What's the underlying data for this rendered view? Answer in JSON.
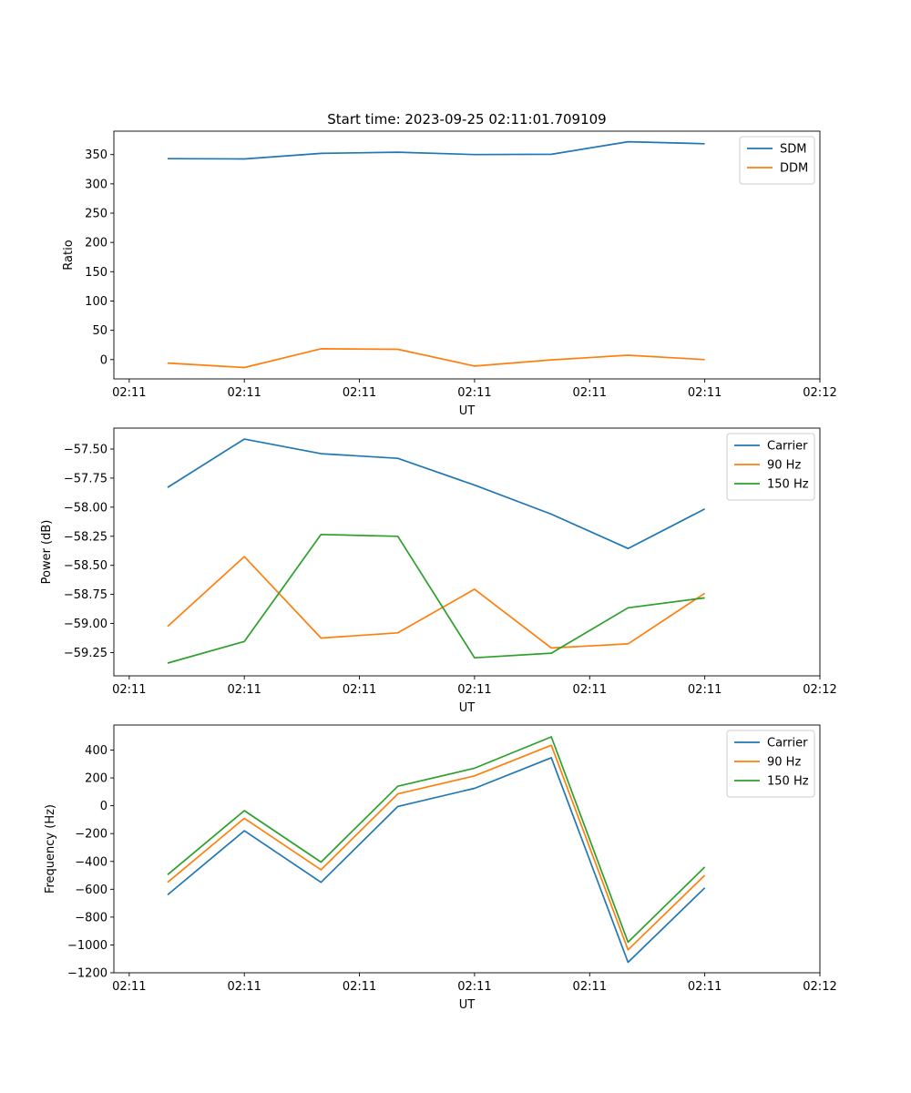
{
  "figure_title": "Start time: 2023-09-25 02:11:01.709109",
  "colors": {
    "blue": "#1f77b4",
    "orange": "#ff7f0e",
    "green": "#2ca02c"
  },
  "chart_data": [
    {
      "type": "line",
      "title": "Start time: 2023-09-25 02:11:01.709109",
      "xlabel": "UT",
      "ylabel": "Ratio",
      "x": [
        1,
        2,
        3,
        4,
        5,
        6,
        7,
        8
      ],
      "xlim": [
        0.3,
        9.5
      ],
      "xticks": [
        0.5,
        2,
        3.5,
        5,
        6.5,
        8,
        9.5
      ],
      "xticklabels": [
        "02:11",
        "02:11",
        "02:11",
        "02:11",
        "02:11",
        "02:11",
        "02:12"
      ],
      "ylim": [
        -33,
        390
      ],
      "yticks": [
        0,
        50,
        100,
        150,
        200,
        250,
        300,
        350
      ],
      "yticklabels": [
        "0",
        "50",
        "100",
        "150",
        "200",
        "250",
        "300",
        "350"
      ],
      "legend": "top-right",
      "series": [
        {
          "name": "SDM",
          "color": "#1f77b4",
          "values": [
            343,
            342.5,
            352,
            354,
            350,
            350.5,
            372,
            368.5
          ]
        },
        {
          "name": "DDM",
          "color": "#ff7f0e",
          "values": [
            -6,
            -13.5,
            18.5,
            17.5,
            -11,
            -0.5,
            7.5,
            0
          ]
        }
      ]
    },
    {
      "type": "line",
      "title": "",
      "xlabel": "UT",
      "ylabel": "Power (dB)",
      "x": [
        1,
        2,
        3,
        4,
        5,
        6,
        7,
        8
      ],
      "xlim": [
        0.3,
        9.5
      ],
      "xticks": [
        0.5,
        2,
        3.5,
        5,
        6.5,
        8,
        9.5
      ],
      "xticklabels": [
        "02:11",
        "02:11",
        "02:11",
        "02:11",
        "02:11",
        "02:11",
        "02:12"
      ],
      "ylim": [
        -59.45,
        -57.32
      ],
      "yticks": [
        -57.5,
        -57.75,
        -58.0,
        -58.25,
        -58.5,
        -58.75,
        -59.0,
        -59.25
      ],
      "yticklabels": [
        "−57.50",
        "−57.75",
        "−58.00",
        "−58.25",
        "−58.50",
        "−58.75",
        "−59.00",
        "−59.25"
      ],
      "legend": "top-right",
      "series": [
        {
          "name": "Carrier",
          "color": "#1f77b4",
          "values": [
            -57.83,
            -57.415,
            -57.54,
            -57.58,
            -57.81,
            -58.06,
            -58.355,
            -58.015
          ]
        },
        {
          "name": "90 Hz",
          "color": "#ff7f0e",
          "values": [
            -59.025,
            -58.425,
            -59.125,
            -59.08,
            -58.705,
            -59.21,
            -59.175,
            -58.74
          ]
        },
        {
          "name": "150 Hz",
          "color": "#2ca02c",
          "values": [
            -59.34,
            -59.155,
            -58.235,
            -58.25,
            -59.295,
            -59.255,
            -58.865,
            -58.78
          ]
        }
      ]
    },
    {
      "type": "line",
      "title": "",
      "xlabel": "UT",
      "ylabel": "Frequency (Hz)",
      "x": [
        1,
        2,
        3,
        4,
        5,
        6,
        7,
        8
      ],
      "xlim": [
        0.3,
        9.5
      ],
      "xticks": [
        0.5,
        2,
        3.5,
        5,
        6.5,
        8,
        9.5
      ],
      "xticklabels": [
        "02:11",
        "02:11",
        "02:11",
        "02:11",
        "02:11",
        "02:11",
        "02:12"
      ],
      "ylim": [
        -1200,
        580
      ],
      "yticks": [
        400,
        200,
        0,
        -200,
        -400,
        -600,
        -800,
        -1000,
        -1200
      ],
      "yticklabels": [
        "400",
        "200",
        "0",
        "−200",
        "−400",
        "−600",
        "−800",
        "−1000",
        "−1200"
      ],
      "legend": "top-right",
      "series": [
        {
          "name": "Carrier",
          "color": "#1f77b4",
          "values": [
            -640,
            -180,
            -550,
            -5,
            125,
            345,
            -1125,
            -590
          ]
        },
        {
          "name": "90 Hz",
          "color": "#ff7f0e",
          "values": [
            -550,
            -90,
            -460,
            85,
            215,
            435,
            -1035,
            -500
          ]
        },
        {
          "name": "150 Hz",
          "color": "#2ca02c",
          "values": [
            -495,
            -35,
            -405,
            140,
            270,
            495,
            -980,
            -440
          ]
        }
      ]
    }
  ]
}
